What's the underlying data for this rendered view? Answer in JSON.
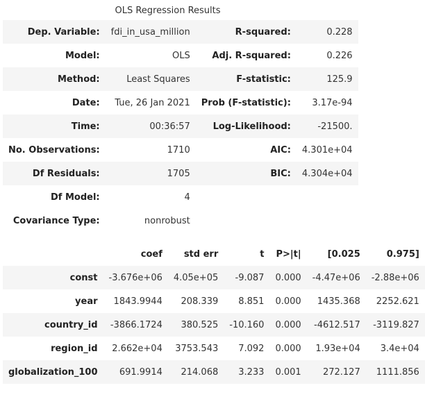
{
  "caption": "OLS Regression Results",
  "summary_rows": [
    {
      "l1": "Dep. Variable:",
      "v1": "fdi_in_usa_million",
      "l2": "R-squared:",
      "v2": "0.228"
    },
    {
      "l1": "Model:",
      "v1": "OLS",
      "l2": "Adj. R-squared:",
      "v2": "0.226"
    },
    {
      "l1": "Method:",
      "v1": "Least Squares",
      "l2": "F-statistic:",
      "v2": "125.9"
    },
    {
      "l1": "Date:",
      "v1": "Tue, 26 Jan 2021",
      "l2": "Prob (F-statistic):",
      "v2": "3.17e-94"
    },
    {
      "l1": "Time:",
      "v1": "00:36:57",
      "l2": "Log-Likelihood:",
      "v2": "-21500."
    },
    {
      "l1": "No. Observations:",
      "v1": "1710",
      "l2": "AIC:",
      "v2": "4.301e+04"
    },
    {
      "l1": "Df Residuals:",
      "v1": "1705",
      "l2": "BIC:",
      "v2": "4.304e+04"
    },
    {
      "l1": "Df Model:",
      "v1": "4",
      "l2": "",
      "v2": ""
    },
    {
      "l1": "Covariance Type:",
      "v1": "nonrobust",
      "l2": "",
      "v2": ""
    }
  ],
  "coef_headers": [
    "",
    "coef",
    "std err",
    "t",
    "P>|t|",
    "[0.025",
    "0.975]"
  ],
  "coef_rows": [
    {
      "name": "const",
      "coef": "-3.676e+06",
      "std_err": "4.05e+05",
      "t": "-9.087",
      "p": "0.000",
      "lo": "-4.47e+06",
      "hi": "-2.88e+06"
    },
    {
      "name": "year",
      "coef": "1843.9944",
      "std_err": "208.339",
      "t": "8.851",
      "p": "0.000",
      "lo": "1435.368",
      "hi": "2252.621"
    },
    {
      "name": "country_id",
      "coef": "-3866.1724",
      "std_err": "380.525",
      "t": "-10.160",
      "p": "0.000",
      "lo": "-4612.517",
      "hi": "-3119.827"
    },
    {
      "name": "region_id",
      "coef": "2.662e+04",
      "std_err": "3753.543",
      "t": "7.092",
      "p": "0.000",
      "lo": "1.93e+04",
      "hi": "3.4e+04"
    },
    {
      "name": "globalization_100",
      "coef": "691.9914",
      "std_err": "214.068",
      "t": "3.233",
      "p": "0.001",
      "lo": "272.127",
      "hi": "1111.856"
    }
  ]
}
